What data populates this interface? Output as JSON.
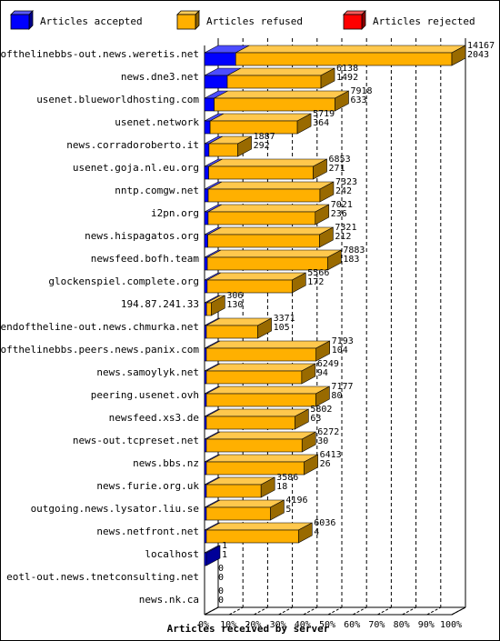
{
  "chart_data": {
    "type": "bar",
    "orientation": "horizontal",
    "stacked": true,
    "xlabel": "Articles received by server",
    "ticks": [
      "0%",
      "10%",
      "20%",
      "30%",
      "40%",
      "50%",
      "60%",
      "70%",
      "80%",
      "90%",
      "100%"
    ],
    "legend": {
      "placement": "top",
      "items": [
        {
          "name": "Articles accepted",
          "color": "#0000FF"
        },
        {
          "name": "Articles refused",
          "color": "#FFB000"
        },
        {
          "name": "Articles rejected",
          "color": "#FF0000"
        }
      ]
    },
    "max_total": 16210,
    "rows": [
      {
        "server": "endofthelinebbs-out.news.weretis.net",
        "accepted": 2043,
        "refused": 14167,
        "rejected": 0,
        "top": "14167",
        "bottom": "2043"
      },
      {
        "server": "news.dne3.net",
        "accepted": 1492,
        "refused": 6138,
        "rejected": 0,
        "top": "6138",
        "bottom": "1492"
      },
      {
        "server": "usenet.blueworldhosting.com",
        "accepted": 633,
        "refused": 7918,
        "rejected": 0,
        "top": "7918",
        "bottom": "633"
      },
      {
        "server": "usenet.network",
        "accepted": 364,
        "refused": 5719,
        "rejected": 0,
        "top": "5719",
        "bottom": "364"
      },
      {
        "server": "news.corradoroberto.it",
        "accepted": 292,
        "refused": 1887,
        "rejected": 0,
        "top": "1887",
        "bottom": "292"
      },
      {
        "server": "usenet.goja.nl.eu.org",
        "accepted": 271,
        "refused": 6853,
        "rejected": 0,
        "top": "6853",
        "bottom": "271"
      },
      {
        "server": "nntp.comgw.net",
        "accepted": 242,
        "refused": 7323,
        "rejected": 0,
        "top": "7323",
        "bottom": "242"
      },
      {
        "server": "i2pn.org",
        "accepted": 236,
        "refused": 7021,
        "rejected": 0,
        "top": "7021",
        "bottom": "236"
      },
      {
        "server": "news.hispagatos.org",
        "accepted": 212,
        "refused": 7321,
        "rejected": 0,
        "top": "7321",
        "bottom": "212"
      },
      {
        "server": "newsfeed.bofh.team",
        "accepted": 183,
        "refused": 7883,
        "rejected": 0,
        "top": "7883",
        "bottom": "183"
      },
      {
        "server": "glockenspiel.complete.org",
        "accepted": 172,
        "refused": 5566,
        "rejected": 0,
        "top": "5566",
        "bottom": "172"
      },
      {
        "server": "194.87.241.33",
        "accepted": 130,
        "refused": 306,
        "rejected": 0,
        "top": "306",
        "bottom": "130"
      },
      {
        "server": "endoftheline-out.news.chmurka.net",
        "accepted": 105,
        "refused": 3371,
        "rejected": 0,
        "top": "3371",
        "bottom": "105"
      },
      {
        "server": "endofthelinebbs.peers.news.panix.com",
        "accepted": 104,
        "refused": 7193,
        "rejected": 0,
        "top": "7193",
        "bottom": "104"
      },
      {
        "server": "news.samoylyk.net",
        "accepted": 94,
        "refused": 6249,
        "rejected": 0,
        "top": "6249",
        "bottom": "94"
      },
      {
        "server": "peering.usenet.ovh",
        "accepted": 80,
        "refused": 7177,
        "rejected": 0,
        "top": "7177",
        "bottom": "80"
      },
      {
        "server": "newsfeed.xs3.de",
        "accepted": 63,
        "refused": 5802,
        "rejected": 0,
        "top": "5802",
        "bottom": "63"
      },
      {
        "server": "news-out.tcpreset.net",
        "accepted": 30,
        "refused": 6272,
        "rejected": 0,
        "top": "6272",
        "bottom": "30"
      },
      {
        "server": "news.bbs.nz",
        "accepted": 26,
        "refused": 6413,
        "rejected": 0,
        "top": "6413",
        "bottom": "26"
      },
      {
        "server": "news.furie.org.uk",
        "accepted": 18,
        "refused": 3586,
        "rejected": 0,
        "top": "3586",
        "bottom": "18"
      },
      {
        "server": "outgoing.news.lysator.liu.se",
        "accepted": 5,
        "refused": 4196,
        "rejected": 0,
        "top": "4196",
        "bottom": "5"
      },
      {
        "server": "news.netfront.net",
        "accepted": 4,
        "refused": 6036,
        "rejected": 0,
        "top": "6036",
        "bottom": "4"
      },
      {
        "server": "localhost",
        "accepted": 1,
        "refused": 0,
        "rejected": 0,
        "top": "1",
        "bottom": "1"
      },
      {
        "server": "eotl-out.news.tnetconsulting.net",
        "accepted": 0,
        "refused": 0,
        "rejected": 0,
        "top": "0",
        "bottom": "0"
      },
      {
        "server": "news.nk.ca",
        "accepted": 0,
        "refused": 0,
        "rejected": 0,
        "top": "0",
        "bottom": "0"
      }
    ]
  }
}
